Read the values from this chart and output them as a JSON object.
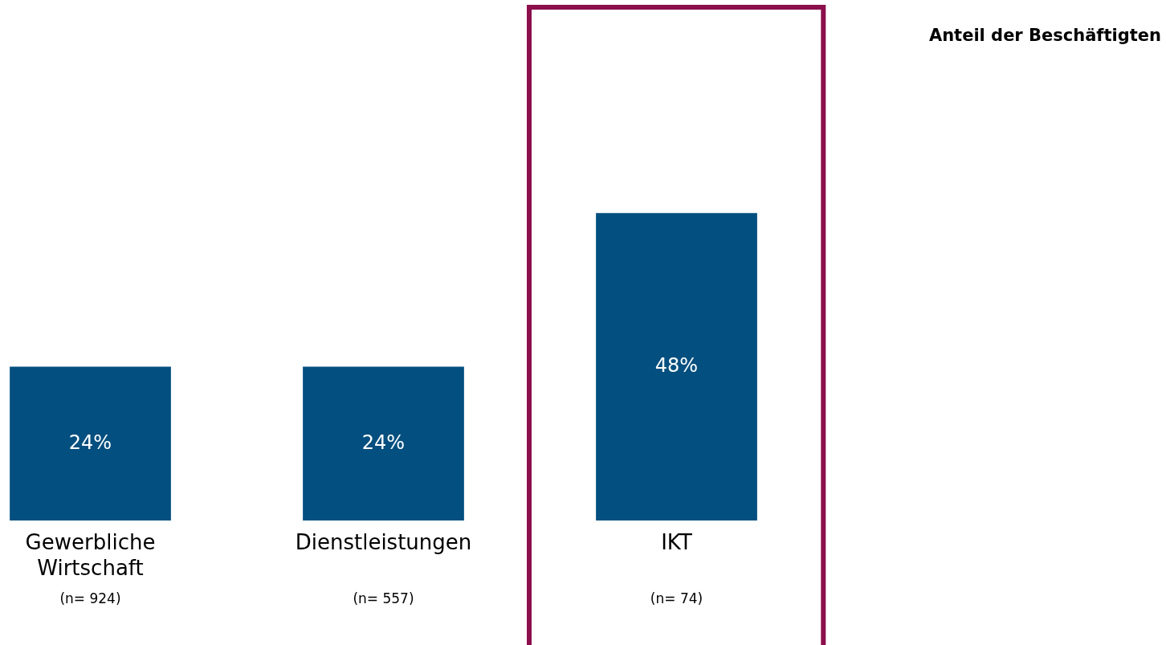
{
  "chart_data": {
    "type": "bar",
    "title": "Anteil der Beschäftigten",
    "categories": [
      "Gewerbliche Wirtschaft",
      "Dienstleistungen",
      "IKT"
    ],
    "values": [
      24,
      24,
      48
    ],
    "color": "#034f7f",
    "value_labels": [
      "24%",
      "24%",
      "48%"
    ],
    "grid": false,
    "legend": false,
    "tick_labels": "x",
    "annotations": [
      "(n= 924)",
      "(n= 557)",
      "(n= 74)"
    ]
  }
}
